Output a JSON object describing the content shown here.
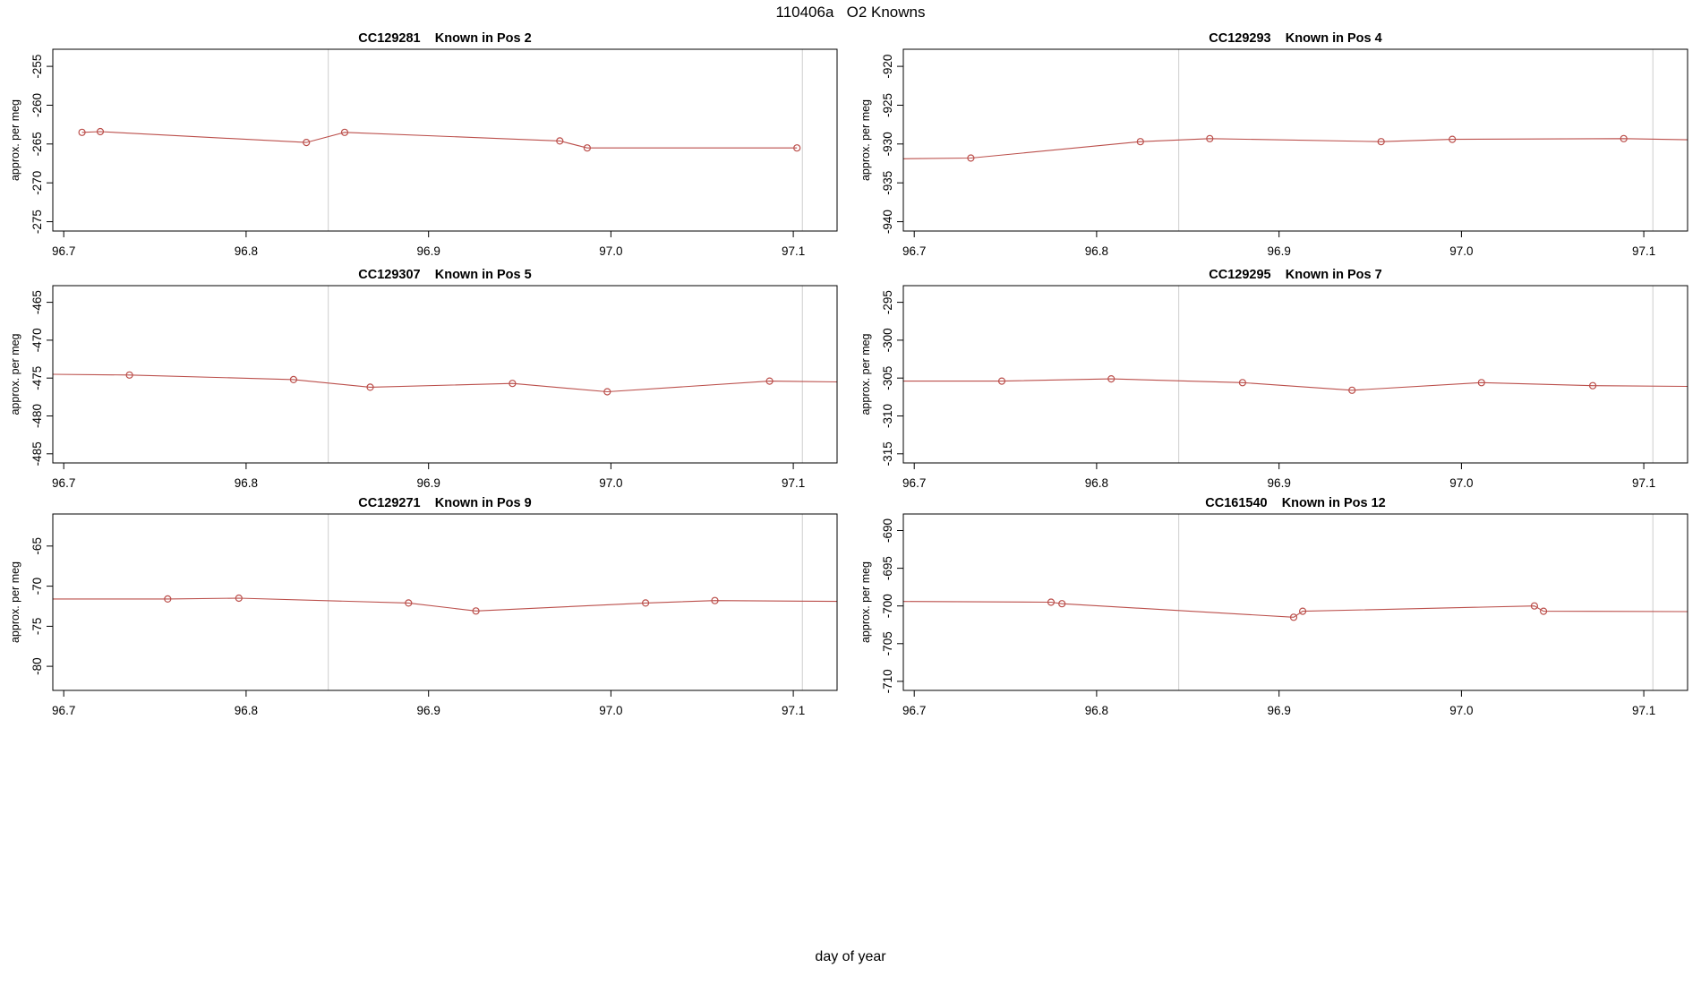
{
  "figure": {
    "title": "110406a   O2 Knowns",
    "xlabel": "day of year"
  },
  "chart_data": {
    "type": "line",
    "title": "110406a   O2 Knowns",
    "xlabel": "day of year",
    "ylabel_each": "approx. per meg",
    "layout": {
      "grid": "3x2",
      "xlim": [
        96.694,
        97.124
      ],
      "xticks": [
        96.7,
        96.8,
        96.9,
        97.0,
        97.1
      ],
      "xtick_labels": [
        "96.7",
        "96.8",
        "96.9",
        "97.0",
        "97.1"
      ],
      "x_gridlines": [
        96.845,
        97.105
      ],
      "grid_on": false,
      "marker": "open-circle"
    },
    "colors": {
      "series": "#bb4f4b",
      "gridline": "#d6d6d6",
      "axis": "#000000"
    },
    "panels": [
      {
        "sample_id": "CC129281",
        "position": "Known in Pos 2",
        "title": "CC129281    Known in Pos 2",
        "ylim": [
          -276.2,
          -252.8
        ],
        "yticks": [
          -275,
          -270,
          -265,
          -260,
          -255
        ],
        "ytick_labels": [
          "-275",
          "-270",
          "-265",
          "-260",
          "-255"
        ],
        "x": [
          96.71,
          96.72,
          96.833,
          96.854,
          96.972,
          96.987,
          97.102
        ],
        "y": [
          -263.5,
          -263.4,
          -264.8,
          -263.5,
          -264.6,
          -265.5,
          -265.5
        ],
        "line_x": [
          96.71,
          96.72,
          96.833,
          96.854,
          96.972,
          96.987,
          97.102
        ],
        "line_y": [
          -263.5,
          -263.4,
          -264.8,
          -263.5,
          -264.6,
          -265.5,
          -265.5
        ]
      },
      {
        "sample_id": "CC129293",
        "position": "Known in Pos 4",
        "title": "CC129293    Known in Pos 4",
        "ylim": [
          -941.2,
          -917.8
        ],
        "yticks": [
          -940,
          -935,
          -930,
          -925,
          -920
        ],
        "ytick_labels": [
          "-940",
          "-935",
          "-930",
          "-925",
          "-920"
        ],
        "x": [
          96.731,
          96.824,
          96.862,
          96.956,
          96.995,
          97.089
        ],
        "y": [
          -931.8,
          -929.7,
          -929.3,
          -929.7,
          -929.4,
          -929.3
        ],
        "line_x": [
          96.694,
          96.731,
          96.824,
          96.862,
          96.956,
          96.995,
          97.089,
          97.124
        ],
        "line_y": [
          -931.9,
          -931.8,
          -929.7,
          -929.3,
          -929.7,
          -929.4,
          -929.3,
          -929.45
        ]
      },
      {
        "sample_id": "CC129307",
        "position": "Known in Pos 5",
        "title": "CC129307    Known in Pos 5",
        "ylim": [
          -486.2,
          -462.8
        ],
        "yticks": [
          -485,
          -480,
          -475,
          -470,
          -465
        ],
        "ytick_labels": [
          "-485",
          "-480",
          "-475",
          "-470",
          "-465"
        ],
        "x": [
          96.736,
          96.826,
          96.868,
          96.946,
          96.998,
          97.087
        ],
        "y": [
          -474.6,
          -475.2,
          -476.2,
          -475.7,
          -476.8,
          -475.4
        ],
        "line_x": [
          96.694,
          96.736,
          96.826,
          96.868,
          96.946,
          96.998,
          97.087,
          97.124
        ],
        "line_y": [
          -474.5,
          -474.6,
          -475.2,
          -476.2,
          -475.7,
          -476.8,
          -475.4,
          -475.5
        ]
      },
      {
        "sample_id": "CC129295",
        "position": "Known in Pos 7",
        "title": "CC129295    Known in Pos 7",
        "ylim": [
          -316.2,
          -292.8
        ],
        "yticks": [
          -315,
          -310,
          -305,
          -300,
          -295
        ],
        "ytick_labels": [
          "-315",
          "-310",
          "-305",
          "-300",
          "-295"
        ],
        "x": [
          96.748,
          96.808,
          96.88,
          96.94,
          97.011,
          97.072
        ],
        "y": [
          -305.4,
          -305.1,
          -305.6,
          -306.6,
          -305.6,
          -306.0
        ],
        "line_x": [
          96.694,
          96.748,
          96.808,
          96.88,
          96.94,
          97.011,
          97.072,
          97.124
        ],
        "line_y": [
          -305.4,
          -305.4,
          -305.1,
          -305.6,
          -306.6,
          -305.6,
          -306.0,
          -306.1
        ]
      },
      {
        "sample_id": "CC129271",
        "position": "Known in Pos 9",
        "title": "CC129271    Known in Pos 9",
        "ylim": [
          -83.0,
          -61.0
        ],
        "yticks": [
          -80,
          -75,
          -70,
          -65
        ],
        "ytick_labels": [
          "-80",
          "-75",
          "-70",
          "-65"
        ],
        "x": [
          96.757,
          96.796,
          96.889,
          96.926,
          97.019,
          97.057
        ],
        "y": [
          -71.6,
          -71.5,
          -72.1,
          -73.1,
          -72.1,
          -71.8
        ],
        "line_x": [
          96.694,
          96.757,
          96.796,
          96.889,
          96.926,
          97.019,
          97.057,
          97.124
        ],
        "line_y": [
          -71.6,
          -71.6,
          -71.5,
          -72.1,
          -73.1,
          -72.1,
          -71.8,
          -71.9
        ]
      },
      {
        "sample_id": "CC161540",
        "position": "Known in Pos 12",
        "title": "CC161540    Known in Pos 12",
        "ylim": [
          -711.2,
          -687.8
        ],
        "yticks": [
          -710,
          -705,
          -700,
          -695,
          -690
        ],
        "ytick_labels": [
          "-710",
          "-705",
          "-700",
          "-695",
          "-690"
        ],
        "x": [
          96.775,
          96.781,
          96.908,
          96.913,
          97.04,
          97.045
        ],
        "y": [
          -699.5,
          -699.7,
          -701.5,
          -700.7,
          -700.0,
          -700.7
        ],
        "line_x": [
          96.694,
          96.775,
          96.781,
          96.908,
          96.913,
          97.04,
          97.045,
          97.124
        ],
        "line_y": [
          -699.4,
          -699.5,
          -699.7,
          -701.5,
          -700.7,
          -700.0,
          -700.7,
          -700.75
        ]
      }
    ]
  }
}
